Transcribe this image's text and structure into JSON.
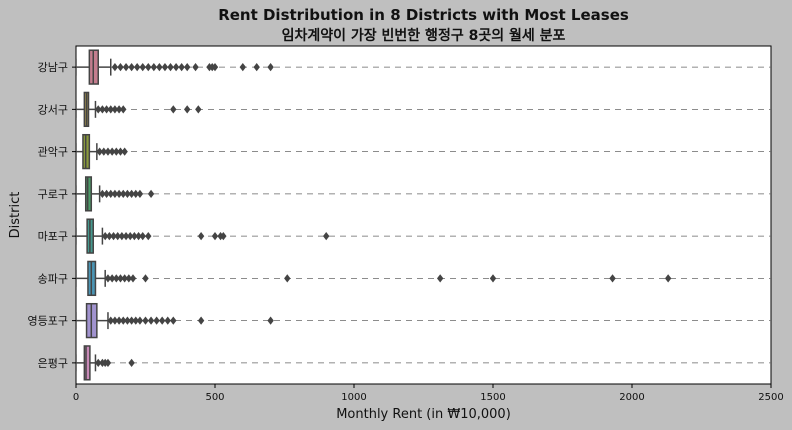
{
  "chart_data": {
    "type": "boxplot",
    "orientation": "horizontal",
    "title": "Rent Distribution in 8 Districts with Most Leases",
    "subtitle": "임차계약이 가장 빈번한 행정구 8곳의 월세 분포",
    "xlabel": "Monthly Rent (in ₩10,000)",
    "ylabel": "District",
    "xlim": [
      0,
      2500
    ],
    "xticks": [
      0,
      500,
      1000,
      1500,
      2000,
      2500
    ],
    "grid": "horizontal dashed",
    "categories": [
      "강남구",
      "강서구",
      "관악구",
      "구로구",
      "마포구",
      "송파구",
      "영등포구",
      "은평구"
    ],
    "boxes": [
      {
        "category": "강남구",
        "whislo": 0,
        "q1": 48,
        "med": 62,
        "q3": 80,
        "whishi": 125,
        "color": "#c47d8e",
        "fliers": [
          140,
          160,
          180,
          200,
          220,
          240,
          260,
          280,
          300,
          320,
          340,
          360,
          380,
          400,
          430,
          480,
          490,
          500,
          600,
          650,
          700
        ]
      },
      {
        "category": "강서구",
        "whislo": 0,
        "q1": 30,
        "med": 38,
        "q3": 45,
        "whishi": 70,
        "color": "#9b8b4d",
        "fliers": [
          80,
          95,
          110,
          125,
          140,
          155,
          170,
          350,
          400,
          440
        ]
      },
      {
        "category": "관악구",
        "whislo": 0,
        "q1": 25,
        "med": 35,
        "q3": 48,
        "whishi": 75,
        "color": "#8a9a3c",
        "fliers": [
          85,
          100,
          115,
          130,
          145,
          160,
          175
        ]
      },
      {
        "category": "구로구",
        "whislo": 0,
        "q1": 35,
        "med": 42,
        "q3": 55,
        "whishi": 85,
        "color": "#4c9a68",
        "fliers": [
          95,
          110,
          125,
          140,
          155,
          170,
          185,
          200,
          215,
          230,
          270
        ]
      },
      {
        "category": "마포구",
        "whislo": 0,
        "q1": 40,
        "med": 50,
        "q3": 62,
        "whishi": 95,
        "color": "#45998e",
        "fliers": [
          105,
          120,
          135,
          150,
          165,
          180,
          195,
          210,
          225,
          240,
          260,
          450,
          500,
          520,
          530,
          900
        ]
      },
      {
        "category": "송파구",
        "whislo": 0,
        "q1": 43,
        "med": 55,
        "q3": 70,
        "whishi": 105,
        "color": "#4a95b5",
        "fliers": [
          115,
          130,
          145,
          160,
          175,
          190,
          205,
          250,
          760,
          1310,
          1500,
          1930,
          2130
        ]
      },
      {
        "category": "영등포구",
        "whislo": 0,
        "q1": 38,
        "med": 55,
        "q3": 75,
        "whishi": 115,
        "color": "#a193cf",
        "fliers": [
          125,
          140,
          155,
          170,
          185,
          200,
          215,
          230,
          250,
          270,
          290,
          310,
          330,
          350,
          450,
          700
        ]
      },
      {
        "category": "은평구",
        "whislo": 0,
        "q1": 30,
        "med": 36,
        "q3": 50,
        "whishi": 70,
        "color": "#c98ab8",
        "fliers": [
          80,
          95,
          105,
          115,
          200
        ]
      }
    ]
  },
  "colors": {
    "figure_bg": "#bfbfbf",
    "axes_bg": "#ffffff",
    "line": "#444444",
    "grid": "#666666"
  }
}
